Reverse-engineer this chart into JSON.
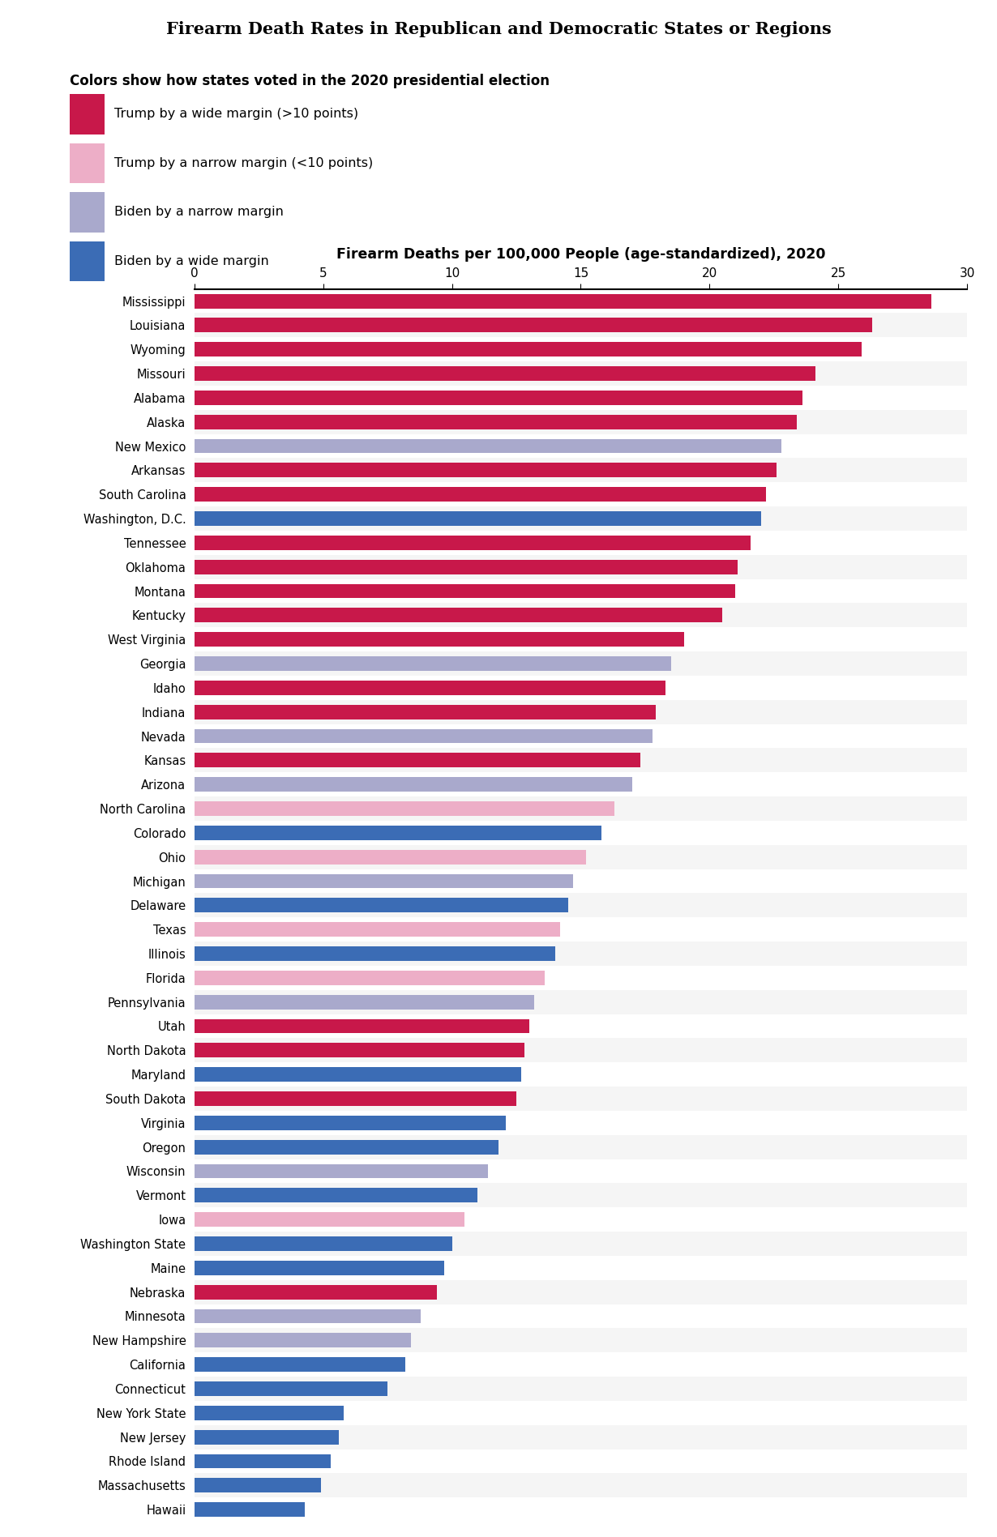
{
  "title": "Firearm Death Rates in Republican and Democratic States or Regions",
  "legend_title": "Colors show how states voted in the 2020 presidential election",
  "legend_items": [
    {
      "label": "Trump by a wide margin (>10 points)",
      "color": "#C8184A"
    },
    {
      "label": "Trump by a narrow margin (<10 points)",
      "color": "#EDAEC7"
    },
    {
      "label": "Biden by a narrow margin",
      "color": "#A9A9CC"
    },
    {
      "label": "Biden by a wide margin",
      "color": "#3B6CB5"
    }
  ],
  "xlabel": "Firearm Deaths per 100,000 People (age-standardized), 2020",
  "xlim": [
    0,
    30
  ],
  "xticks": [
    0,
    5,
    10,
    15,
    20,
    25,
    30
  ],
  "states": [
    {
      "name": "Mississippi",
      "value": 28.6,
      "color": "#C8184A"
    },
    {
      "name": "Louisiana",
      "value": 26.3,
      "color": "#C8184A"
    },
    {
      "name": "Wyoming",
      "value": 25.9,
      "color": "#C8184A"
    },
    {
      "name": "Missouri",
      "value": 24.1,
      "color": "#C8184A"
    },
    {
      "name": "Alabama",
      "value": 23.6,
      "color": "#C8184A"
    },
    {
      "name": "Alaska",
      "value": 23.4,
      "color": "#C8184A"
    },
    {
      "name": "New Mexico",
      "value": 22.8,
      "color": "#A9A9CC"
    },
    {
      "name": "Arkansas",
      "value": 22.6,
      "color": "#C8184A"
    },
    {
      "name": "South Carolina",
      "value": 22.2,
      "color": "#C8184A"
    },
    {
      "name": "Washington, D.C.",
      "value": 22.0,
      "color": "#3B6CB5"
    },
    {
      "name": "Tennessee",
      "value": 21.6,
      "color": "#C8184A"
    },
    {
      "name": "Oklahoma",
      "value": 21.1,
      "color": "#C8184A"
    },
    {
      "name": "Montana",
      "value": 21.0,
      "color": "#C8184A"
    },
    {
      "name": "Kentucky",
      "value": 20.5,
      "color": "#C8184A"
    },
    {
      "name": "West Virginia",
      "value": 19.0,
      "color": "#C8184A"
    },
    {
      "name": "Georgia",
      "value": 18.5,
      "color": "#A9A9CC"
    },
    {
      "name": "Idaho",
      "value": 18.3,
      "color": "#C8184A"
    },
    {
      "name": "Indiana",
      "value": 17.9,
      "color": "#C8184A"
    },
    {
      "name": "Nevada",
      "value": 17.8,
      "color": "#A9A9CC"
    },
    {
      "name": "Kansas",
      "value": 17.3,
      "color": "#C8184A"
    },
    {
      "name": "Arizona",
      "value": 17.0,
      "color": "#A9A9CC"
    },
    {
      "name": "North Carolina",
      "value": 16.3,
      "color": "#EDAEC7"
    },
    {
      "name": "Colorado",
      "value": 15.8,
      "color": "#3B6CB5"
    },
    {
      "name": "Ohio",
      "value": 15.2,
      "color": "#EDAEC7"
    },
    {
      "name": "Michigan",
      "value": 14.7,
      "color": "#A9A9CC"
    },
    {
      "name": "Delaware",
      "value": 14.5,
      "color": "#3B6CB5"
    },
    {
      "name": "Texas",
      "value": 14.2,
      "color": "#EDAEC7"
    },
    {
      "name": "Illinois",
      "value": 14.0,
      "color": "#3B6CB5"
    },
    {
      "name": "Florida",
      "value": 13.6,
      "color": "#EDAEC7"
    },
    {
      "name": "Pennsylvania",
      "value": 13.2,
      "color": "#A9A9CC"
    },
    {
      "name": "Utah",
      "value": 13.0,
      "color": "#C8184A"
    },
    {
      "name": "North Dakota",
      "value": 12.8,
      "color": "#C8184A"
    },
    {
      "name": "Maryland",
      "value": 12.7,
      "color": "#3B6CB5"
    },
    {
      "name": "South Dakota",
      "value": 12.5,
      "color": "#C8184A"
    },
    {
      "name": "Virginia",
      "value": 12.1,
      "color": "#3B6CB5"
    },
    {
      "name": "Oregon",
      "value": 11.8,
      "color": "#3B6CB5"
    },
    {
      "name": "Wisconsin",
      "value": 11.4,
      "color": "#A9A9CC"
    },
    {
      "name": "Vermont",
      "value": 11.0,
      "color": "#3B6CB5"
    },
    {
      "name": "Iowa",
      "value": 10.5,
      "color": "#EDAEC7"
    },
    {
      "name": "Washington State",
      "value": 10.0,
      "color": "#3B6CB5"
    },
    {
      "name": "Maine",
      "value": 9.7,
      "color": "#3B6CB5"
    },
    {
      "name": "Nebraska",
      "value": 9.4,
      "color": "#C8184A"
    },
    {
      "name": "Minnesota",
      "value": 8.8,
      "color": "#A9A9CC"
    },
    {
      "name": "New Hampshire",
      "value": 8.4,
      "color": "#A9A9CC"
    },
    {
      "name": "California",
      "value": 8.2,
      "color": "#3B6CB5"
    },
    {
      "name": "Connecticut",
      "value": 7.5,
      "color": "#3B6CB5"
    },
    {
      "name": "New York State",
      "value": 5.8,
      "color": "#3B6CB5"
    },
    {
      "name": "New Jersey",
      "value": 5.6,
      "color": "#3B6CB5"
    },
    {
      "name": "Rhode Island",
      "value": 5.3,
      "color": "#3B6CB5"
    },
    {
      "name": "Massachusetts",
      "value": 4.9,
      "color": "#3B6CB5"
    },
    {
      "name": "Hawaii",
      "value": 4.3,
      "color": "#3B6CB5"
    }
  ],
  "background_color": "#FFFFFF",
  "title_bg_color": "#E0E0E0",
  "bar_height": 0.6
}
